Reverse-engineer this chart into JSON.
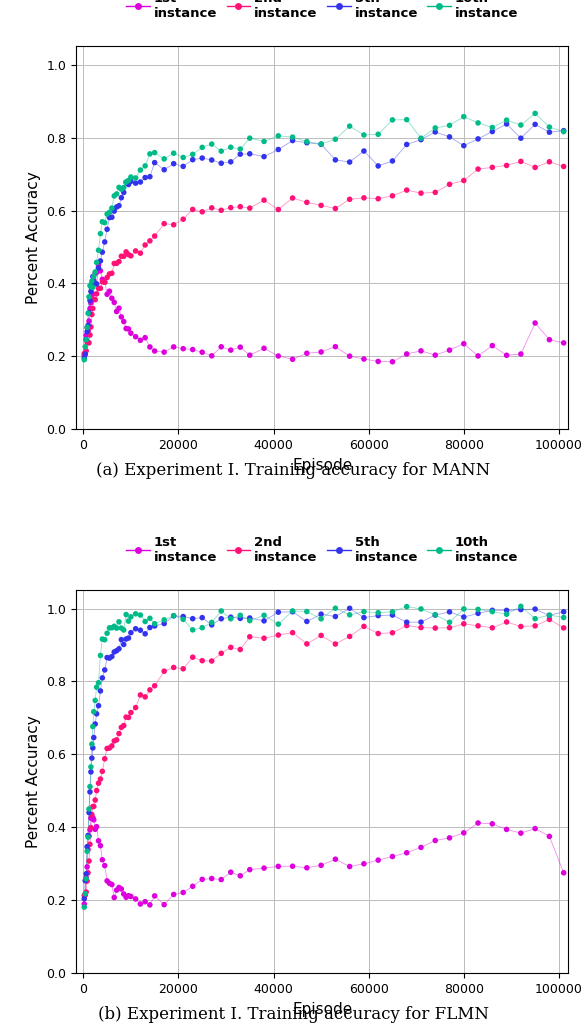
{
  "title_a": "(a) Experiment I. Training accuracy for MANN",
  "title_b": "(b) Experiment I. Training accuracy for FLMN",
  "xlabel": "Episode",
  "ylabel": "Percent Accuracy",
  "ylim": [
    0.0,
    1.05
  ],
  "xlim": [
    -1500,
    102000
  ],
  "colors": {
    "1st": "#DD00DD",
    "2nd": "#FF1177",
    "5th": "#3333EE",
    "10th": "#00BB88"
  },
  "mann": {
    "1st": {
      "x": [
        200,
        400,
        600,
        800,
        1000,
        1200,
        1400,
        1600,
        1800,
        2000,
        2200,
        2500,
        2800,
        3200,
        3600,
        4000,
        4500,
        5000,
        5500,
        6000,
        6500,
        7000,
        7500,
        8000,
        8500,
        9000,
        9500,
        10000,
        11000,
        12000,
        13000,
        14000,
        15000,
        17000,
        19000,
        21000,
        23000,
        25000,
        27000,
        29000,
        31000,
        33000,
        35000,
        38000,
        41000,
        44000,
        47000,
        50000,
        53000,
        56000,
        59000,
        62000,
        65000,
        68000,
        71000,
        74000,
        77000,
        80000,
        83000,
        86000,
        89000,
        92000,
        95000,
        98000,
        101000
      ],
      "y": [
        0.2,
        0.22,
        0.25,
        0.27,
        0.29,
        0.31,
        0.33,
        0.35,
        0.37,
        0.38,
        0.4,
        0.42,
        0.43,
        0.44,
        0.43,
        0.42,
        0.4,
        0.38,
        0.37,
        0.36,
        0.35,
        0.33,
        0.32,
        0.31,
        0.3,
        0.28,
        0.27,
        0.26,
        0.25,
        0.24,
        0.23,
        0.23,
        0.22,
        0.22,
        0.22,
        0.21,
        0.22,
        0.22,
        0.21,
        0.22,
        0.21,
        0.22,
        0.21,
        0.22,
        0.2,
        0.19,
        0.2,
        0.21,
        0.22,
        0.2,
        0.19,
        0.18,
        0.2,
        0.21,
        0.22,
        0.21,
        0.22,
        0.22,
        0.21,
        0.22,
        0.22,
        0.21,
        0.29,
        0.24,
        0.23
      ]
    },
    "2nd": {
      "x": [
        200,
        400,
        600,
        800,
        1000,
        1200,
        1400,
        1600,
        1800,
        2000,
        2200,
        2500,
        2800,
        3200,
        3600,
        4000,
        4500,
        5000,
        5500,
        6000,
        6500,
        7000,
        7500,
        8000,
        8500,
        9000,
        9500,
        10000,
        11000,
        12000,
        13000,
        14000,
        15000,
        17000,
        19000,
        21000,
        23000,
        25000,
        27000,
        29000,
        31000,
        33000,
        35000,
        38000,
        41000,
        44000,
        47000,
        50000,
        53000,
        56000,
        59000,
        62000,
        65000,
        68000,
        71000,
        74000,
        77000,
        80000,
        83000,
        86000,
        89000,
        92000,
        95000,
        98000,
        101000
      ],
      "y": [
        0.2,
        0.21,
        0.22,
        0.23,
        0.24,
        0.25,
        0.27,
        0.29,
        0.31,
        0.33,
        0.35,
        0.36,
        0.37,
        0.38,
        0.39,
        0.4,
        0.41,
        0.42,
        0.43,
        0.44,
        0.45,
        0.46,
        0.46,
        0.47,
        0.47,
        0.48,
        0.48,
        0.48,
        0.49,
        0.5,
        0.52,
        0.53,
        0.54,
        0.56,
        0.57,
        0.58,
        0.59,
        0.6,
        0.6,
        0.61,
        0.61,
        0.62,
        0.61,
        0.62,
        0.62,
        0.63,
        0.62,
        0.62,
        0.62,
        0.63,
        0.64,
        0.63,
        0.64,
        0.64,
        0.65,
        0.66,
        0.67,
        0.68,
        0.7,
        0.71,
        0.72,
        0.72,
        0.73,
        0.74,
        0.73
      ]
    },
    "5th": {
      "x": [
        200,
        400,
        600,
        800,
        1000,
        1200,
        1400,
        1600,
        1800,
        2000,
        2200,
        2500,
        2800,
        3200,
        3600,
        4000,
        4500,
        5000,
        5500,
        6000,
        6500,
        7000,
        7500,
        8000,
        8500,
        9000,
        9500,
        10000,
        11000,
        12000,
        13000,
        14000,
        15000,
        17000,
        19000,
        21000,
        23000,
        25000,
        27000,
        29000,
        31000,
        33000,
        35000,
        38000,
        41000,
        44000,
        47000,
        50000,
        53000,
        56000,
        59000,
        62000,
        65000,
        68000,
        71000,
        74000,
        77000,
        80000,
        83000,
        86000,
        89000,
        92000,
        95000,
        98000,
        101000
      ],
      "y": [
        0.2,
        0.22,
        0.24,
        0.27,
        0.3,
        0.33,
        0.35,
        0.37,
        0.38,
        0.39,
        0.4,
        0.41,
        0.42,
        0.44,
        0.47,
        0.49,
        0.52,
        0.55,
        0.57,
        0.58,
        0.6,
        0.62,
        0.63,
        0.64,
        0.65,
        0.66,
        0.67,
        0.67,
        0.68,
        0.69,
        0.7,
        0.7,
        0.71,
        0.72,
        0.72,
        0.73,
        0.73,
        0.74,
        0.74,
        0.73,
        0.74,
        0.75,
        0.76,
        0.76,
        0.78,
        0.79,
        0.77,
        0.78,
        0.74,
        0.73,
        0.75,
        0.72,
        0.74,
        0.77,
        0.79,
        0.8,
        0.8,
        0.79,
        0.81,
        0.8,
        0.82,
        0.8,
        0.84,
        0.8,
        0.83
      ]
    },
    "10th": {
      "x": [
        200,
        400,
        600,
        800,
        1000,
        1200,
        1400,
        1600,
        1800,
        2000,
        2200,
        2500,
        2800,
        3200,
        3600,
        4000,
        4500,
        5000,
        5500,
        6000,
        6500,
        7000,
        7500,
        8000,
        8500,
        9000,
        9500,
        10000,
        11000,
        12000,
        13000,
        14000,
        15000,
        17000,
        19000,
        21000,
        23000,
        25000,
        27000,
        29000,
        31000,
        33000,
        35000,
        38000,
        41000,
        44000,
        47000,
        50000,
        53000,
        56000,
        59000,
        62000,
        65000,
        68000,
        71000,
        74000,
        77000,
        80000,
        83000,
        86000,
        89000,
        92000,
        95000,
        98000,
        101000
      ],
      "y": [
        0.2,
        0.22,
        0.25,
        0.28,
        0.32,
        0.36,
        0.38,
        0.39,
        0.4,
        0.41,
        0.42,
        0.44,
        0.47,
        0.5,
        0.54,
        0.56,
        0.58,
        0.59,
        0.6,
        0.61,
        0.63,
        0.64,
        0.65,
        0.66,
        0.67,
        0.68,
        0.68,
        0.69,
        0.7,
        0.71,
        0.72,
        0.73,
        0.74,
        0.75,
        0.76,
        0.76,
        0.76,
        0.77,
        0.77,
        0.77,
        0.78,
        0.79,
        0.8,
        0.8,
        0.81,
        0.81,
        0.79,
        0.8,
        0.81,
        0.81,
        0.82,
        0.82,
        0.83,
        0.82,
        0.81,
        0.83,
        0.83,
        0.84,
        0.85,
        0.83,
        0.84,
        0.83,
        0.87,
        0.83,
        0.83
      ]
    }
  },
  "flmn": {
    "1st": {
      "x": [
        200,
        400,
        600,
        800,
        1000,
        1200,
        1400,
        1600,
        1800,
        2000,
        2200,
        2500,
        2800,
        3200,
        3600,
        4000,
        4500,
        5000,
        5500,
        6000,
        6500,
        7000,
        7500,
        8000,
        8500,
        9000,
        9500,
        10000,
        11000,
        12000,
        13000,
        14000,
        15000,
        17000,
        19000,
        21000,
        23000,
        25000,
        27000,
        29000,
        31000,
        33000,
        35000,
        38000,
        41000,
        44000,
        47000,
        50000,
        53000,
        56000,
        59000,
        62000,
        65000,
        68000,
        71000,
        74000,
        77000,
        80000,
        83000,
        86000,
        89000,
        92000,
        95000,
        98000,
        101000
      ],
      "y": [
        0.2,
        0.22,
        0.25,
        0.29,
        0.33,
        0.37,
        0.4,
        0.42,
        0.43,
        0.43,
        0.42,
        0.41,
        0.39,
        0.37,
        0.34,
        0.31,
        0.28,
        0.26,
        0.25,
        0.24,
        0.23,
        0.22,
        0.22,
        0.22,
        0.21,
        0.21,
        0.2,
        0.2,
        0.2,
        0.19,
        0.2,
        0.2,
        0.2,
        0.21,
        0.22,
        0.22,
        0.23,
        0.24,
        0.25,
        0.26,
        0.27,
        0.28,
        0.27,
        0.29,
        0.3,
        0.3,
        0.29,
        0.3,
        0.29,
        0.3,
        0.3,
        0.31,
        0.32,
        0.33,
        0.35,
        0.37,
        0.38,
        0.4,
        0.41,
        0.4,
        0.4,
        0.39,
        0.4,
        0.38,
        0.29
      ]
    },
    "2nd": {
      "x": [
        200,
        400,
        600,
        800,
        1000,
        1200,
        1400,
        1600,
        1800,
        2000,
        2200,
        2500,
        2800,
        3200,
        3600,
        4000,
        4500,
        5000,
        5500,
        6000,
        6500,
        7000,
        7500,
        8000,
        8500,
        9000,
        9500,
        10000,
        11000,
        12000,
        13000,
        14000,
        15000,
        17000,
        19000,
        21000,
        23000,
        25000,
        27000,
        29000,
        31000,
        33000,
        35000,
        38000,
        41000,
        44000,
        47000,
        50000,
        53000,
        56000,
        59000,
        62000,
        65000,
        68000,
        71000,
        74000,
        77000,
        80000,
        83000,
        86000,
        89000,
        92000,
        95000,
        98000,
        101000
      ],
      "y": [
        0.2,
        0.21,
        0.23,
        0.25,
        0.28,
        0.31,
        0.35,
        0.39,
        0.42,
        0.44,
        0.46,
        0.48,
        0.5,
        0.52,
        0.54,
        0.56,
        0.58,
        0.6,
        0.62,
        0.63,
        0.64,
        0.65,
        0.66,
        0.67,
        0.68,
        0.69,
        0.7,
        0.71,
        0.73,
        0.75,
        0.77,
        0.78,
        0.8,
        0.82,
        0.83,
        0.84,
        0.85,
        0.86,
        0.87,
        0.88,
        0.89,
        0.89,
        0.9,
        0.91,
        0.91,
        0.92,
        0.92,
        0.93,
        0.93,
        0.93,
        0.94,
        0.94,
        0.94,
        0.95,
        0.94,
        0.95,
        0.95,
        0.95,
        0.95,
        0.95,
        0.96,
        0.95,
        0.95,
        0.95,
        0.95
      ]
    },
    "5th": {
      "x": [
        200,
        400,
        600,
        800,
        1000,
        1200,
        1400,
        1600,
        1800,
        2000,
        2200,
        2500,
        2800,
        3200,
        3600,
        4000,
        4500,
        5000,
        5500,
        6000,
        6500,
        7000,
        7500,
        8000,
        8500,
        9000,
        9500,
        10000,
        11000,
        12000,
        13000,
        14000,
        15000,
        17000,
        19000,
        21000,
        23000,
        25000,
        27000,
        29000,
        31000,
        33000,
        35000,
        38000,
        41000,
        44000,
        47000,
        50000,
        53000,
        56000,
        59000,
        62000,
        65000,
        68000,
        71000,
        74000,
        77000,
        80000,
        83000,
        86000,
        89000,
        92000,
        95000,
        98000,
        101000
      ],
      "y": [
        0.21,
        0.24,
        0.28,
        0.33,
        0.38,
        0.44,
        0.49,
        0.54,
        0.58,
        0.62,
        0.65,
        0.68,
        0.71,
        0.74,
        0.77,
        0.8,
        0.83,
        0.85,
        0.86,
        0.87,
        0.88,
        0.89,
        0.9,
        0.91,
        0.91,
        0.92,
        0.92,
        0.93,
        0.94,
        0.94,
        0.95,
        0.95,
        0.96,
        0.96,
        0.97,
        0.97,
        0.97,
        0.97,
        0.97,
        0.97,
        0.97,
        0.98,
        0.97,
        0.97,
        0.98,
        0.98,
        0.97,
        0.97,
        0.98,
        0.98,
        0.98,
        0.98,
        0.98,
        0.97,
        0.98,
        0.99,
        0.98,
        0.98,
        0.99,
        0.98,
        0.99,
        0.99,
        0.99,
        0.99,
        0.99
      ]
    },
    "10th": {
      "x": [
        200,
        400,
        600,
        800,
        1000,
        1200,
        1400,
        1600,
        1800,
        2000,
        2200,
        2500,
        2800,
        3200,
        3600,
        4000,
        4500,
        5000,
        5500,
        6000,
        6500,
        7000,
        7500,
        8000,
        8500,
        9000,
        9500,
        10000,
        11000,
        12000,
        13000,
        14000,
        15000,
        17000,
        19000,
        21000,
        23000,
        25000,
        27000,
        29000,
        31000,
        33000,
        35000,
        38000,
        41000,
        44000,
        47000,
        50000,
        53000,
        56000,
        59000,
        62000,
        65000,
        68000,
        71000,
        74000,
        77000,
        80000,
        83000,
        86000,
        89000,
        92000,
        95000,
        98000,
        101000
      ],
      "y": [
        0.18,
        0.22,
        0.27,
        0.33,
        0.39,
        0.46,
        0.52,
        0.57,
        0.62,
        0.66,
        0.7,
        0.74,
        0.78,
        0.82,
        0.86,
        0.89,
        0.91,
        0.93,
        0.94,
        0.94,
        0.95,
        0.95,
        0.96,
        0.96,
        0.96,
        0.97,
        0.97,
        0.97,
        0.97,
        0.97,
        0.97,
        0.97,
        0.97,
        0.97,
        0.97,
        0.97,
        0.97,
        0.97,
        0.97,
        0.98,
        0.97,
        0.98,
        0.98,
        0.98,
        0.98,
        0.99,
        0.98,
        0.98,
        0.99,
        0.99,
        0.99,
        0.99,
        0.99,
        0.99,
        0.99,
        0.99,
        0.99,
        0.99,
        0.99,
        0.99,
        0.99,
        0.99,
        0.99,
        0.99,
        0.99
      ]
    }
  }
}
